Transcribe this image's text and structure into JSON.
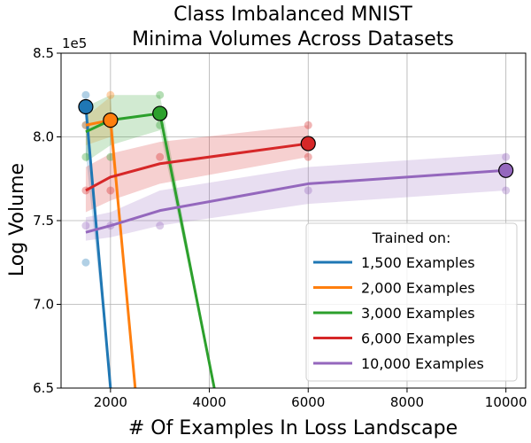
{
  "chart_data": {
    "type": "line",
    "title": "Class Imbalanced MNIST",
    "subtitle": "Minima Volumes Across Datasets",
    "xlabel": "# Of Examples In Loss Landscape",
    "ylabel": "Log Volume",
    "y_scale_label": "1e5",
    "xlim": [
      1000,
      10400
    ],
    "ylim": [
      6.5,
      8.5
    ],
    "xticks": [
      2000,
      4000,
      6000,
      8000,
      10000
    ],
    "yticks": [
      6.5,
      7.0,
      7.5,
      8.0,
      8.5
    ],
    "xtick_labels": [
      "2000",
      "4000",
      "6000",
      "8000",
      "10000"
    ],
    "ytick_labels": [
      "6.5",
      "7.0",
      "7.5",
      "8.0",
      "8.5"
    ],
    "grid": true,
    "legend": {
      "title": "Trained on:",
      "placement": "lower-right"
    },
    "series": [
      {
        "name": "1,500 Examples",
        "color": "#1f77b4",
        "trained_n": 1500,
        "x": [
          1500,
          2000
        ],
        "mean": [
          8.18,
          6.5
        ],
        "lower": [
          7.9,
          6.5
        ],
        "upper": [
          8.25,
          6.5
        ],
        "raw": [
          [
            1500,
            8.25
          ],
          [
            1500,
            8.07
          ],
          [
            1500,
            7.25
          ]
        ],
        "minimum": {
          "x": 1500,
          "y": 8.18
        }
      },
      {
        "name": "2,000 Examples",
        "color": "#ff7f0e",
        "trained_n": 2000,
        "x": [
          1500,
          2000,
          2500
        ],
        "mean": [
          8.07,
          8.1,
          6.5
        ],
        "lower": [
          7.95,
          8.0,
          6.5
        ],
        "upper": [
          8.12,
          8.24,
          6.5
        ],
        "raw": [
          [
            1500,
            8.07
          ],
          [
            2000,
            8.25
          ],
          [
            2000,
            8.07
          ]
        ],
        "minimum": {
          "x": 2000,
          "y": 8.1
        }
      },
      {
        "name": "3,000 Examples",
        "color": "#2ca02c",
        "trained_n": 3000,
        "x": [
          1500,
          2000,
          3000,
          4100
        ],
        "mean": [
          8.03,
          8.1,
          8.14,
          6.5
        ],
        "lower": [
          7.85,
          7.95,
          8.04,
          6.5
        ],
        "upper": [
          8.18,
          8.25,
          8.25,
          6.5
        ],
        "raw": [
          [
            1500,
            7.88
          ],
          [
            2000,
            7.88
          ],
          [
            3000,
            8.25
          ],
          [
            3000,
            8.07
          ]
        ],
        "minimum": {
          "x": 3000,
          "y": 8.14
        }
      },
      {
        "name": "6,000 Examples",
        "color": "#d62728",
        "trained_n": 6000,
        "x": [
          1500,
          2000,
          3000,
          6000
        ],
        "mean": [
          7.68,
          7.76,
          7.84,
          7.96
        ],
        "lower": [
          7.55,
          7.62,
          7.72,
          7.88
        ],
        "upper": [
          7.82,
          7.9,
          7.97,
          8.07
        ],
        "raw": [
          [
            1500,
            7.68
          ],
          [
            2000,
            7.68
          ],
          [
            3000,
            7.88
          ],
          [
            6000,
            8.07
          ],
          [
            6000,
            7.88
          ]
        ],
        "minimum": {
          "x": 6000,
          "y": 7.96
        }
      },
      {
        "name": "10,000 Examples",
        "color": "#9467bd",
        "trained_n": 10000,
        "x": [
          1500,
          2000,
          3000,
          6000,
          10000
        ],
        "mean": [
          7.43,
          7.47,
          7.56,
          7.72,
          7.8
        ],
        "lower": [
          7.38,
          7.4,
          7.47,
          7.6,
          7.68
        ],
        "upper": [
          7.52,
          7.55,
          7.68,
          7.82,
          7.9
        ],
        "raw": [
          [
            1500,
            7.47
          ],
          [
            2000,
            7.47
          ],
          [
            3000,
            7.47
          ],
          [
            6000,
            7.68
          ],
          [
            10000,
            7.88
          ],
          [
            10000,
            7.68
          ]
        ],
        "minimum": {
          "x": 10000,
          "y": 7.8
        }
      }
    ]
  }
}
